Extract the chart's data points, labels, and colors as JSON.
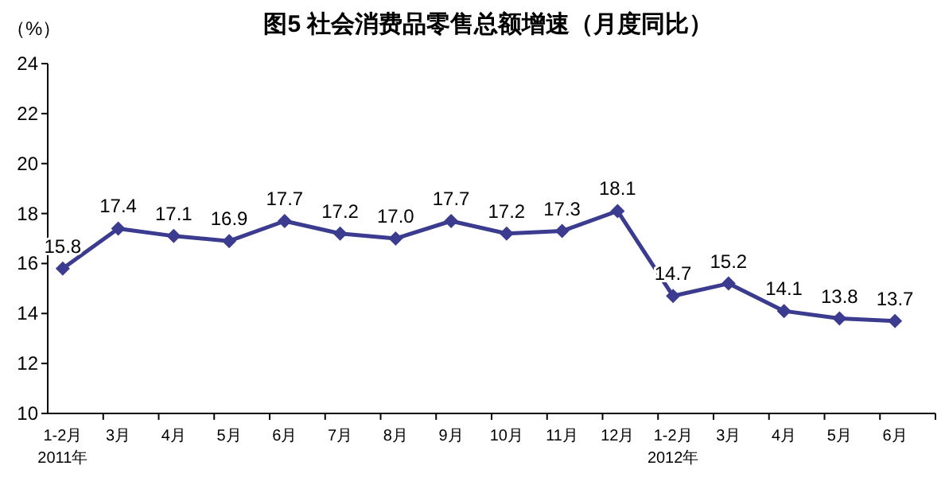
{
  "chart_data": {
    "type": "line",
    "title": "图5  社会消费品零售总额增速（月度同比）",
    "ylabel": "（%）",
    "categories": [
      "1-2月\n2011年",
      "3月",
      "4月",
      "5月",
      "6月",
      "7月",
      "8月",
      "9月",
      "10月",
      "11月",
      "12月",
      "1-2月\n2012年",
      "3月",
      "4月",
      "5月",
      "6月"
    ],
    "series": [
      {
        "color": "#3b3b8f",
        "values": [
          15.8,
          17.4,
          17.1,
          16.9,
          17.7,
          17.2,
          17.0,
          17.7,
          17.2,
          17.3,
          18.1,
          14.7,
          15.2,
          14.1,
          13.8,
          13.7
        ],
        "value_labels": [
          "15.8",
          "17.4",
          "17.1",
          "16.9",
          "17.7",
          "17.2",
          "17.0",
          "17.7",
          "17.2",
          "17.3",
          "18.1",
          "14.7",
          "15.2",
          "14.1",
          "13.8",
          "13.7"
        ]
      }
    ],
    "ylim": [
      10,
      24
    ],
    "yticks": [
      10,
      12,
      14,
      16,
      18,
      20,
      22,
      24
    ],
    "marker": "diamond",
    "line_style": "solid"
  }
}
